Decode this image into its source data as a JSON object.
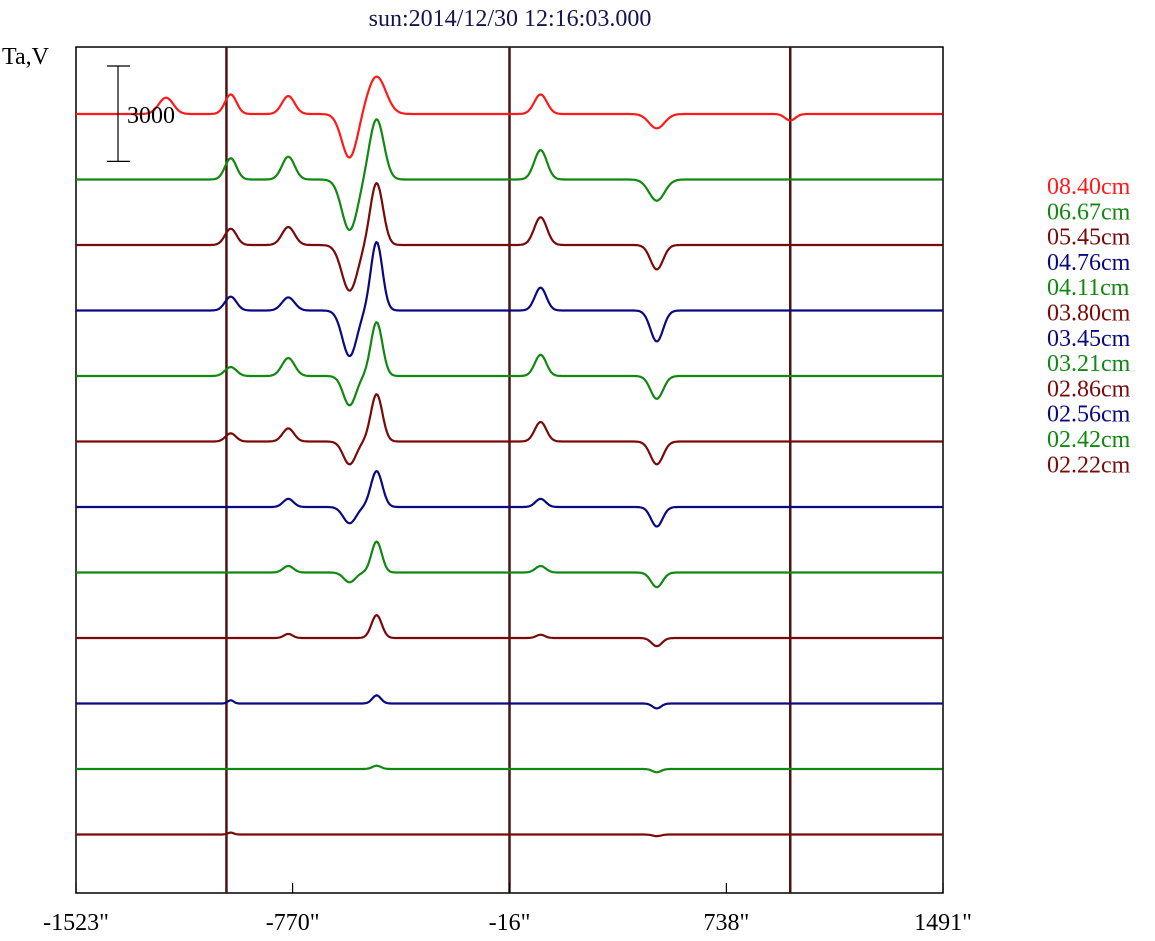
{
  "title": "sun:2014/12/30 12:16:03.000",
  "colors": {
    "red": "#ff1a1a",
    "green": "#118811",
    "maroon": "#7a0a0a",
    "navy": "#0a0a80",
    "title": "#141450",
    "frame": "#000000",
    "vline": "#4a1414"
  },
  "chart_data": {
    "type": "line",
    "title": "sun:2014/12/30 12:16:03.000",
    "ylabel": "Ta,V",
    "xlabel": "",
    "xlim": [
      -1523,
      1491
    ],
    "xticks": [
      {
        "value": -1523,
        "label": "-1523\""
      },
      {
        "value": -770,
        "label": "-770\""
      },
      {
        "value": -16,
        "label": "-16\""
      },
      {
        "value": 738,
        "label": "738\""
      },
      {
        "value": 1491,
        "label": "1491\""
      }
    ],
    "vertical_lines": [
      -1000,
      -16,
      960
    ],
    "scale_bar": {
      "label": "3000",
      "value": 3000
    },
    "series": [
      {
        "name": "08.40cm",
        "color": "red",
        "offset": 0,
        "peaks": [
          {
            "x": -1210,
            "a": 1000,
            "w": 25
          },
          {
            "x": -985,
            "a": 1200,
            "w": 20
          },
          {
            "x": -785,
            "a": 1100,
            "w": 22
          },
          {
            "x": -572,
            "a": -2700,
            "w": 27
          },
          {
            "x": -478,
            "a": 2300,
            "w": 32
          },
          {
            "x": 92,
            "a": 1200,
            "w": 22
          },
          {
            "x": 496,
            "a": -880,
            "w": 27
          },
          {
            "x": 960,
            "a": -400,
            "w": 18
          }
        ]
      },
      {
        "name": "06.67cm",
        "color": "green",
        "offset": 1,
        "peaks": [
          {
            "x": -985,
            "a": 1300,
            "w": 20
          },
          {
            "x": -785,
            "a": 1400,
            "w": 22
          },
          {
            "x": -572,
            "a": -3100,
            "w": 27
          },
          {
            "x": -478,
            "a": 3700,
            "w": 25
          },
          {
            "x": 92,
            "a": 1800,
            "w": 22
          },
          {
            "x": 496,
            "a": -1300,
            "w": 27
          }
        ]
      },
      {
        "name": "05.45cm",
        "color": "maroon",
        "offset": 2,
        "peaks": [
          {
            "x": -985,
            "a": 1000,
            "w": 20
          },
          {
            "x": -785,
            "a": 1100,
            "w": 22
          },
          {
            "x": -572,
            "a": -2800,
            "w": 27
          },
          {
            "x": -478,
            "a": 3800,
            "w": 22
          },
          {
            "x": 92,
            "a": 1700,
            "w": 22
          },
          {
            "x": 496,
            "a": -1500,
            "w": 22
          }
        ]
      },
      {
        "name": "04.76cm",
        "color": "navy",
        "offset": 3,
        "peaks": [
          {
            "x": -985,
            "a": 850,
            "w": 20
          },
          {
            "x": -785,
            "a": 800,
            "w": 22
          },
          {
            "x": -572,
            "a": -2800,
            "w": 25
          },
          {
            "x": -478,
            "a": 4200,
            "w": 20
          },
          {
            "x": 92,
            "a": 1400,
            "w": 20
          },
          {
            "x": 496,
            "a": -1900,
            "w": 22
          }
        ]
      },
      {
        "name": "04.11cm",
        "color": "green",
        "offset": 4,
        "peaks": [
          {
            "x": -985,
            "a": 550,
            "w": 20
          },
          {
            "x": -785,
            "a": 1100,
            "w": 22
          },
          {
            "x": -572,
            "a": -1800,
            "w": 22
          },
          {
            "x": -478,
            "a": 3300,
            "w": 20
          },
          {
            "x": 92,
            "a": 1300,
            "w": 20
          },
          {
            "x": 496,
            "a": -1400,
            "w": 22
          }
        ]
      },
      {
        "name": "03.80cm",
        "color": "maroon",
        "offset": 5,
        "peaks": [
          {
            "x": -985,
            "a": 500,
            "w": 18
          },
          {
            "x": -785,
            "a": 800,
            "w": 20
          },
          {
            "x": -572,
            "a": -1400,
            "w": 22
          },
          {
            "x": -478,
            "a": 2900,
            "w": 20
          },
          {
            "x": 92,
            "a": 1200,
            "w": 20
          },
          {
            "x": 496,
            "a": -1400,
            "w": 22
          }
        ]
      },
      {
        "name": "03.45cm",
        "color": "navy",
        "offset": 6,
        "peaks": [
          {
            "x": -785,
            "a": 500,
            "w": 18
          },
          {
            "x": -572,
            "a": -1000,
            "w": 22
          },
          {
            "x": -478,
            "a": 2200,
            "w": 20
          },
          {
            "x": 92,
            "a": 500,
            "w": 18
          },
          {
            "x": 496,
            "a": -1200,
            "w": 20
          }
        ]
      },
      {
        "name": "03.21cm",
        "color": "green",
        "offset": 7,
        "peaks": [
          {
            "x": -785,
            "a": 400,
            "w": 18
          },
          {
            "x": -572,
            "a": -600,
            "w": 20
          },
          {
            "x": -478,
            "a": 1900,
            "w": 18
          },
          {
            "x": 92,
            "a": 400,
            "w": 18
          },
          {
            "x": 496,
            "a": -900,
            "w": 20
          }
        ]
      },
      {
        "name": "02.86cm",
        "color": "maroon",
        "offset": 8,
        "peaks": [
          {
            "x": -785,
            "a": 250,
            "w": 15
          },
          {
            "x": -478,
            "a": 1400,
            "w": 18
          },
          {
            "x": 92,
            "a": 200,
            "w": 15
          },
          {
            "x": 496,
            "a": -500,
            "w": 18
          }
        ]
      },
      {
        "name": "02.56cm",
        "color": "navy",
        "offset": 9,
        "peaks": [
          {
            "x": -985,
            "a": 200,
            "w": 10
          },
          {
            "x": -478,
            "a": 500,
            "w": 15
          },
          {
            "x": 496,
            "a": -300,
            "w": 15
          }
        ]
      },
      {
        "name": "02.42cm",
        "color": "green",
        "offset": 10,
        "peaks": [
          {
            "x": -478,
            "a": 200,
            "w": 15
          },
          {
            "x": 496,
            "a": -200,
            "w": 15
          }
        ]
      },
      {
        "name": "02.22cm",
        "color": "maroon",
        "offset": 11,
        "peaks": [
          {
            "x": -985,
            "a": 120,
            "w": 10
          },
          {
            "x": 496,
            "a": -100,
            "w": 15
          }
        ]
      }
    ]
  }
}
